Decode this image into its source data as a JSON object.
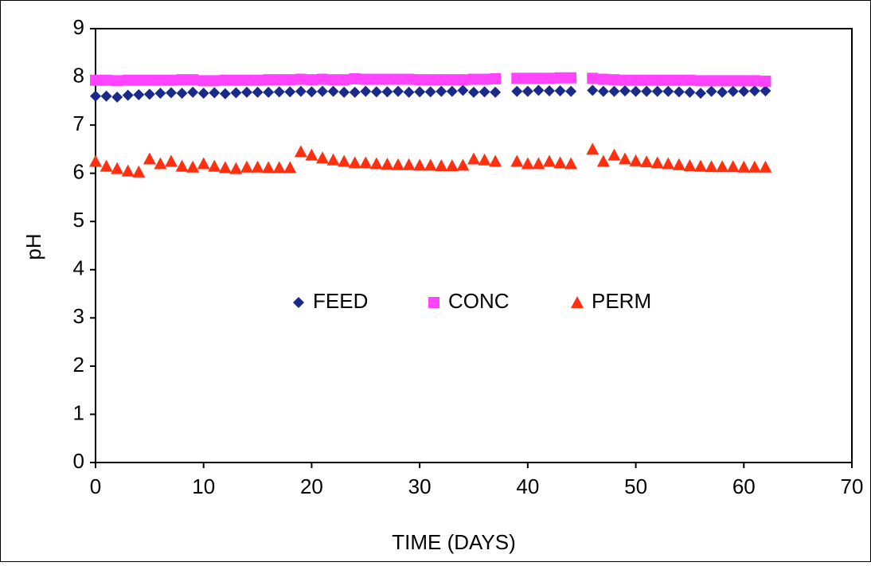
{
  "chart_data": {
    "type": "scatter",
    "x_label": "TIME (DAYS)",
    "y_label": "pH",
    "xlim": [
      0,
      70
    ],
    "xticks": [
      0,
      10,
      20,
      30,
      40,
      50,
      60,
      70
    ],
    "ylim": [
      0,
      9
    ],
    "yticks": [
      0,
      1,
      2,
      3,
      4,
      5,
      6,
      7,
      8,
      9
    ],
    "grid": false,
    "legend": "center",
    "x": [
      0,
      1,
      2,
      3,
      4,
      5,
      6,
      7,
      8,
      9,
      10,
      11,
      12,
      13,
      14,
      15,
      16,
      17,
      18,
      19,
      20,
      21,
      22,
      23,
      24,
      25,
      26,
      27,
      28,
      29,
      30,
      31,
      32,
      33,
      34,
      35,
      36,
      37,
      39,
      40,
      41,
      42,
      43,
      44,
      46,
      47,
      48,
      49,
      50,
      51,
      52,
      53,
      54,
      55,
      56,
      57,
      58,
      59,
      60,
      61,
      62
    ],
    "series": [
      {
        "name": "FEED",
        "color": "#1a2a8a",
        "marker": "diamond",
        "values": [
          7.6,
          7.6,
          7.58,
          7.62,
          7.63,
          7.64,
          7.66,
          7.67,
          7.66,
          7.68,
          7.66,
          7.67,
          7.65,
          7.67,
          7.68,
          7.68,
          7.68,
          7.69,
          7.69,
          7.7,
          7.69,
          7.7,
          7.7,
          7.68,
          7.68,
          7.7,
          7.69,
          7.69,
          7.7,
          7.68,
          7.69,
          7.69,
          7.7,
          7.7,
          7.72,
          7.68,
          7.69,
          7.68,
          7.7,
          7.7,
          7.72,
          7.71,
          7.71,
          7.7,
          7.72,
          7.7,
          7.7,
          7.71,
          7.7,
          7.7,
          7.7,
          7.7,
          7.69,
          7.68,
          7.66,
          7.7,
          7.68,
          7.7,
          7.7,
          7.71,
          7.71
        ]
      },
      {
        "name": "CONC",
        "color": "#ff44ff",
        "marker": "square",
        "values": [
          7.93,
          7.93,
          7.92,
          7.93,
          7.93,
          7.93,
          7.93,
          7.93,
          7.94,
          7.94,
          7.92,
          7.92,
          7.93,
          7.93,
          7.93,
          7.93,
          7.94,
          7.94,
          7.94,
          7.95,
          7.94,
          7.95,
          7.94,
          7.94,
          7.96,
          7.95,
          7.95,
          7.95,
          7.95,
          7.95,
          7.94,
          7.94,
          7.94,
          7.94,
          7.94,
          7.95,
          7.95,
          7.96,
          7.97,
          7.97,
          7.97,
          7.97,
          7.98,
          7.98,
          7.97,
          7.95,
          7.94,
          7.93,
          7.93,
          7.93,
          7.93,
          7.93,
          7.93,
          7.93,
          7.92,
          7.92,
          7.92,
          7.92,
          7.92,
          7.92,
          7.91
        ]
      },
      {
        "name": "PERM",
        "color": "#ff3010",
        "marker": "triangle",
        "values": [
          6.25,
          6.15,
          6.1,
          6.05,
          6.03,
          6.3,
          6.2,
          6.25,
          6.15,
          6.13,
          6.2,
          6.15,
          6.12,
          6.1,
          6.13,
          6.13,
          6.12,
          6.12,
          6.12,
          6.45,
          6.38,
          6.32,
          6.28,
          6.25,
          6.22,
          6.22,
          6.2,
          6.19,
          6.18,
          6.18,
          6.17,
          6.17,
          6.16,
          6.16,
          6.17,
          6.3,
          6.28,
          6.25,
          6.25,
          6.2,
          6.2,
          6.25,
          6.22,
          6.2,
          6.5,
          6.25,
          6.38,
          6.3,
          6.26,
          6.24,
          6.22,
          6.2,
          6.18,
          6.16,
          6.15,
          6.14,
          6.14,
          6.14,
          6.13,
          6.13,
          6.13
        ]
      }
    ]
  }
}
